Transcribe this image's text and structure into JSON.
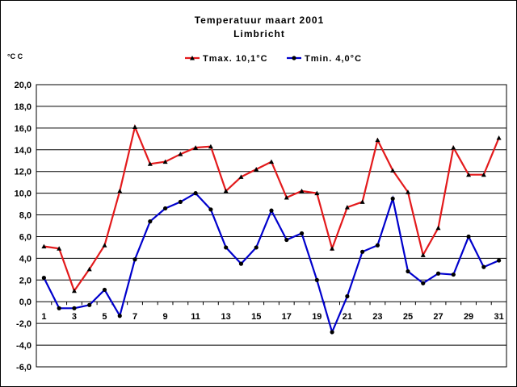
{
  "chart_data": {
    "type": "line",
    "title": "Temperatuur maart 2001",
    "subtitle": "Limbricht",
    "ylabel": "°C C",
    "ylim": [
      -6,
      20
    ],
    "y_ticks": [
      "20,0",
      "18,0",
      "16,0",
      "14,0",
      "12,0",
      "10,0",
      "8,0",
      "6,0",
      "4,0",
      "2,0",
      "0,0",
      "-2,0",
      "-4,0",
      "-6,0"
    ],
    "x": [
      1,
      2,
      3,
      4,
      5,
      6,
      7,
      8,
      9,
      10,
      11,
      12,
      13,
      14,
      15,
      16,
      17,
      18,
      19,
      20,
      21,
      22,
      23,
      24,
      25,
      26,
      27,
      28,
      29,
      30,
      31
    ],
    "x_ticks": [
      "1",
      "3",
      "5",
      "7",
      "9",
      "11",
      "13",
      "15",
      "17",
      "19",
      "21",
      "23",
      "25",
      "27",
      "29",
      "31"
    ],
    "grid": true,
    "legend_position": "top",
    "series": [
      {
        "name": "Tmax. 10,1°C",
        "color": "#e31a1c",
        "marker": "triangle",
        "values": [
          5.1,
          4.9,
          1.0,
          3.0,
          5.2,
          10.2,
          16.1,
          12.7,
          12.9,
          13.6,
          14.2,
          14.3,
          10.2,
          11.5,
          12.2,
          12.9,
          9.6,
          10.2,
          10.0,
          4.9,
          8.7,
          9.2,
          14.9,
          12.1,
          10.1,
          4.3,
          6.8,
          14.2,
          11.7,
          11.7,
          15.1
        ]
      },
      {
        "name": "Tmin. 4,0°C",
        "color": "#0000cc",
        "marker": "circle",
        "values": [
          2.2,
          -0.6,
          -0.6,
          -0.3,
          1.1,
          -1.3,
          3.9,
          7.4,
          8.6,
          9.2,
          10.0,
          8.5,
          5.0,
          3.5,
          5.0,
          8.4,
          5.7,
          6.3,
          2.0,
          -2.8,
          0.5,
          4.6,
          5.2,
          9.5,
          2.8,
          1.7,
          2.6,
          2.5,
          6.0,
          3.2,
          3.8
        ]
      }
    ]
  }
}
